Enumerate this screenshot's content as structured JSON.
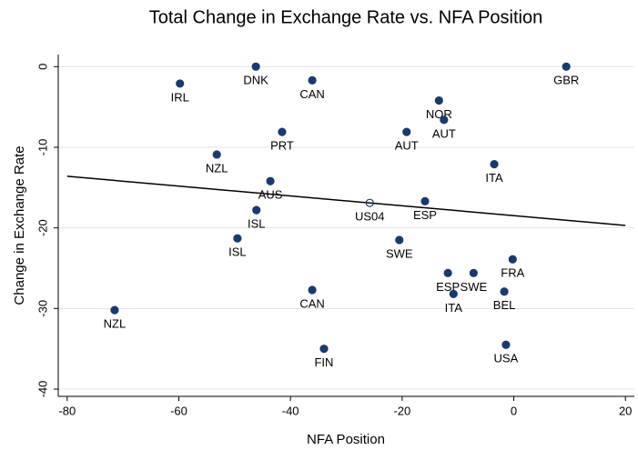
{
  "chart_data": {
    "type": "scatter",
    "title": "Total Change in Exchange Rate vs. NFA Position",
    "x_label": "NFA Position",
    "y_label": "Change in Exchange Rate",
    "xlim": [
      -81.6,
      21.6
    ],
    "ylim": [
      -40.9,
      1.5
    ],
    "xticks": [
      -80,
      -60,
      -40,
      -20,
      0,
      20
    ],
    "yticks": [
      0,
      -10,
      -20,
      -30,
      -40
    ],
    "grid": true,
    "series": [
      {
        "color": "#1a3a6e",
        "fill": "solid",
        "points": [
          {
            "label": "DNK",
            "x": -46.2,
            "y": 0
          },
          {
            "label": "IRL",
            "x": -59.8,
            "y": -2.1
          },
          {
            "label": "CAN",
            "x": -36.1,
            "y": -1.7
          },
          {
            "label": "GBR",
            "x": 9.4,
            "y": 0
          },
          {
            "label": "NOR",
            "x": -13.4,
            "y": -4.2
          },
          {
            "label": "AUT",
            "x": -12.5,
            "y": -6.6
          },
          {
            "label": "AUT",
            "x": -19.2,
            "y": -8.1
          },
          {
            "label": "PRT",
            "x": -41.5,
            "y": -8.1
          },
          {
            "label": "NZL",
            "x": -53.2,
            "y": -10.9
          },
          {
            "label": "ITA",
            "x": -3.5,
            "y": -12.1
          },
          {
            "label": "AUS",
            "x": -43.6,
            "y": -14.2
          },
          {
            "label": "ESP",
            "x": -15.9,
            "y": -16.7
          },
          {
            "label": "ISL",
            "x": -46.1,
            "y": -17.8
          },
          {
            "label": "ISL",
            "x": -49.5,
            "y": -21.3
          },
          {
            "label": "SWE",
            "x": -20.5,
            "y": -21.5
          },
          {
            "label": "FRA",
            "x": -0.2,
            "y": -23.9
          },
          {
            "label": "ESP",
            "x": -11.8,
            "y": -25.6
          },
          {
            "label": "SWE",
            "x": -7.2,
            "y": -25.6
          },
          {
            "label": "ITA",
            "x": -10.8,
            "y": -28.2
          },
          {
            "label": "BEL",
            "x": -1.7,
            "y": -27.9
          },
          {
            "label": "CAN",
            "x": -36.1,
            "y": -27.7
          },
          {
            "label": "NZL",
            "x": -71.5,
            "y": -30.2
          },
          {
            "label": "FIN",
            "x": -34.0,
            "y": -35.0
          },
          {
            "label": "USA",
            "x": -1.4,
            "y": -34.5
          }
        ]
      },
      {
        "color": "#1a3a6e",
        "fill": "none",
        "points": [
          {
            "label": "US04",
            "x": -25.8,
            "y": -16.9
          }
        ]
      }
    ],
    "fit_line": {
      "color": "#000000",
      "x": [
        -80,
        20
      ],
      "y": [
        -13.6,
        -19.7
      ]
    }
  }
}
